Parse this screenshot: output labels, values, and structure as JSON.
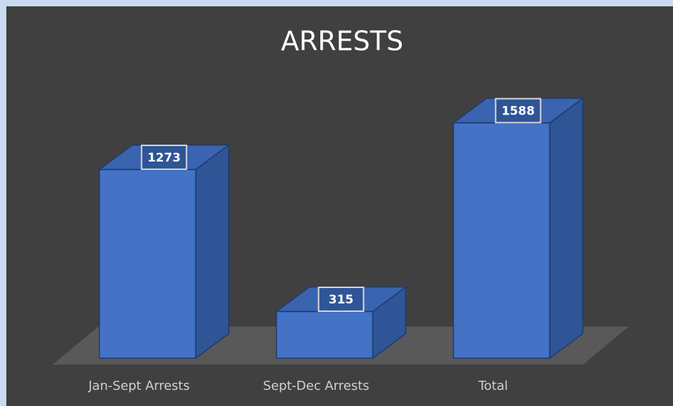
{
  "chart_data": {
    "type": "bar3d",
    "title": "ARRESTS",
    "categories": [
      "Jan-Sept Arrests",
      "Sept-Dec Arrests",
      "Total"
    ],
    "values": [
      1273,
      315,
      1588
    ],
    "color": "#4472c4"
  }
}
